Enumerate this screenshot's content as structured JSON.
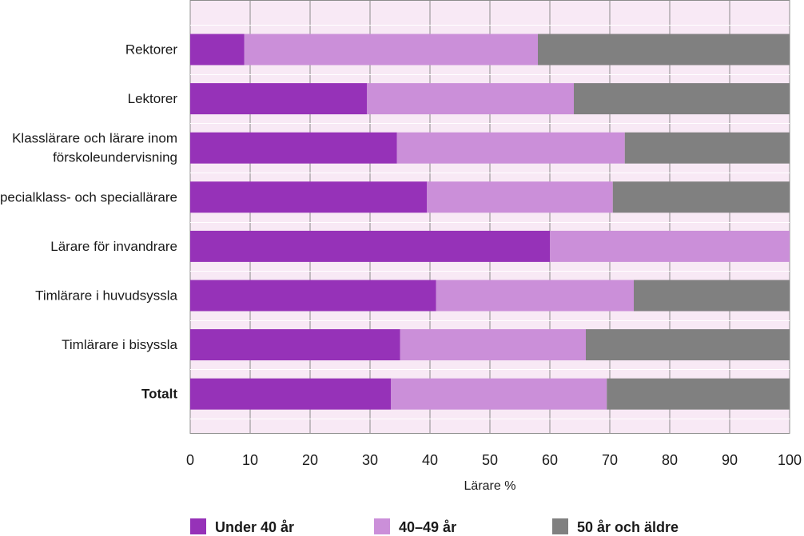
{
  "chart_data": {
    "type": "bar",
    "orientation": "horizontal",
    "stacked": true,
    "categories": [
      "Rektorer",
      "Lektorer",
      "Klasslärare och lärare inom förskoleundervisning",
      "Specialklass- och speciallärare",
      "Lärare för invandrare",
      "Timlärare i huvudsyssla",
      "Timlärare i bisyssla",
      "Totalt"
    ],
    "category_lines": [
      [
        "Rektorer"
      ],
      [
        "Lektorer"
      ],
      [
        "Klasslärare och lärare inom",
        "förskoleundervisning"
      ],
      [
        "Specialklass- och speciallärare"
      ],
      [
        "Lärare för invandrare"
      ],
      [
        "Timlärare i huvudsyssla"
      ],
      [
        "Timlärare i bisyssla"
      ],
      [
        "Totalt"
      ]
    ],
    "bold_categories": [
      "Totalt"
    ],
    "series": [
      {
        "name": "Under 40 år",
        "color": "#9632b8",
        "values": [
          9,
          29.5,
          34.5,
          39.5,
          60,
          41,
          35,
          33.5
        ]
      },
      {
        "name": "40–49 år",
        "color": "#cb8fd9",
        "values": [
          49,
          34.5,
          38,
          31,
          40,
          33,
          31,
          36
        ]
      },
      {
        "name": "50 år och äldre",
        "color": "#808080",
        "values": [
          42,
          36,
          27.5,
          29.5,
          0,
          26,
          34,
          30.5
        ]
      }
    ],
    "xlabel": "Lärare %",
    "xlim": [
      0,
      100
    ],
    "xticks": [
      0,
      10,
      20,
      30,
      40,
      50,
      60,
      70,
      80,
      90,
      100
    ],
    "grid": true,
    "plot_background": "#f8e9f5",
    "legend_position": "bottom"
  }
}
